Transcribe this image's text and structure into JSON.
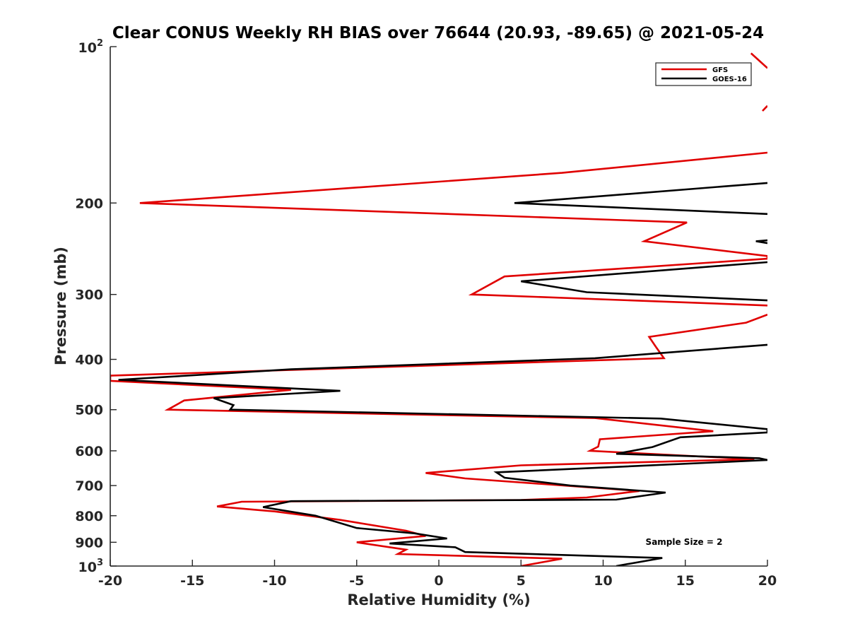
{
  "chart_data": {
    "type": "line",
    "title": "Clear CONUS Weekly RH BIAS over 76644 (20.93, -89.65) @ 2021-05-24",
    "xlabel": "Relative Humidity (%)",
    "ylabel": "Pressure (mb)",
    "xlim": [
      -20,
      20
    ],
    "ylim": [
      100,
      1000
    ],
    "yscale": "log",
    "yreversed": true,
    "x_ticks": [
      -20,
      -15,
      -10,
      -5,
      0,
      5,
      10,
      15,
      20
    ],
    "x_tick_labels": [
      "-20",
      "-15",
      "-10",
      "-5",
      "0",
      "5",
      "10",
      "15",
      "20"
    ],
    "y_ticks": [
      200,
      300,
      400,
      500,
      600,
      700,
      800,
      900
    ],
    "y_tick_labels": [
      "200",
      "300",
      "400",
      "500",
      "600",
      "700",
      "800",
      "900"
    ],
    "y_decade_ticks": [
      {
        "value": 100,
        "base": "10",
        "exponent": "2"
      },
      {
        "value": 1000,
        "base": "10",
        "exponent": "3"
      }
    ],
    "legend_position": "top-right",
    "annotation": "Sample Size = 2",
    "series": [
      {
        "name": "GFS",
        "color": "#e00000",
        "points": [
          [
            20,
            110
          ],
          [
            19,
            103
          ],
          null,
          [
            20,
            130
          ],
          [
            19.7,
            133
          ],
          null,
          [
            20,
            160
          ],
          [
            7.5,
            175
          ],
          [
            -18.2,
            200
          ],
          [
            15.1,
            218
          ],
          [
            12.5,
            237
          ],
          [
            20,
            253
          ],
          [
            20,
            256
          ],
          [
            4,
            277
          ],
          [
            2,
            300
          ],
          [
            20,
            315
          ],
          null,
          [
            20,
            328
          ],
          [
            18.7,
            340
          ],
          [
            12.8,
            362
          ],
          [
            13.2,
            378
          ],
          [
            13.7,
            398
          ],
          [
            -20,
            430
          ],
          [
            -20,
            440
          ],
          [
            -9,
            458
          ],
          [
            -15.5,
            480
          ],
          [
            -16.5,
            500
          ],
          [
            9.5,
            519
          ],
          [
            16.7,
            550
          ],
          [
            9.8,
            570
          ],
          [
            9.7,
            589
          ],
          [
            9.2,
            600
          ],
          [
            19.2,
            623
          ],
          [
            5,
            640
          ],
          [
            -0.8,
            662
          ],
          [
            1.6,
            678
          ],
          [
            12.2,
            717
          ],
          [
            9,
            738
          ],
          [
            5,
            746
          ],
          [
            -12,
            752
          ],
          [
            -13.5,
            768
          ],
          [
            -10,
            785
          ],
          [
            -6,
            815
          ],
          [
            -2,
            855
          ],
          [
            -0.8,
            875
          ],
          [
            -5,
            900
          ],
          [
            -2,
            930
          ],
          [
            -2.5,
            948
          ],
          [
            7.5,
            968
          ],
          [
            5,
            1000
          ]
        ]
      },
      {
        "name": "GOES-16",
        "color": "#000000",
        "points": [
          [
            20,
            183
          ],
          [
            4.6,
            200
          ],
          [
            20,
            210
          ],
          null,
          [
            20,
            236
          ],
          [
            19.3,
            237
          ],
          [
            20,
            239
          ],
          null,
          [
            20,
            260
          ],
          [
            5,
            283
          ],
          [
            9,
            297
          ],
          [
            20,
            308
          ],
          null,
          [
            20,
            375
          ],
          [
            9.5,
            398
          ],
          [
            -9,
            418
          ],
          [
            -19.5,
            438
          ],
          [
            -6,
            460
          ],
          [
            -13.7,
            475
          ],
          [
            -12.5,
            490
          ],
          [
            -12.7,
            500
          ],
          [
            13.5,
            520
          ],
          [
            20,
            545
          ],
          [
            20,
            553
          ],
          [
            14.7,
            565
          ],
          [
            13,
            590
          ],
          [
            10.8,
            608
          ],
          [
            19.5,
            620
          ],
          [
            20,
            625
          ],
          [
            3.5,
            660
          ],
          [
            4,
            676
          ],
          [
            8,
            700
          ],
          [
            13.8,
            722
          ],
          [
            10.8,
            745
          ],
          [
            -9,
            750
          ],
          [
            -10.7,
            770
          ],
          [
            -7.5,
            800
          ],
          [
            -5,
            845
          ],
          [
            -1.5,
            865
          ],
          [
            0.5,
            885
          ],
          [
            -3,
            905
          ],
          [
            1,
            920
          ],
          [
            1.6,
            940
          ],
          [
            13.6,
            965
          ],
          [
            10.8,
            1000
          ]
        ]
      }
    ]
  }
}
